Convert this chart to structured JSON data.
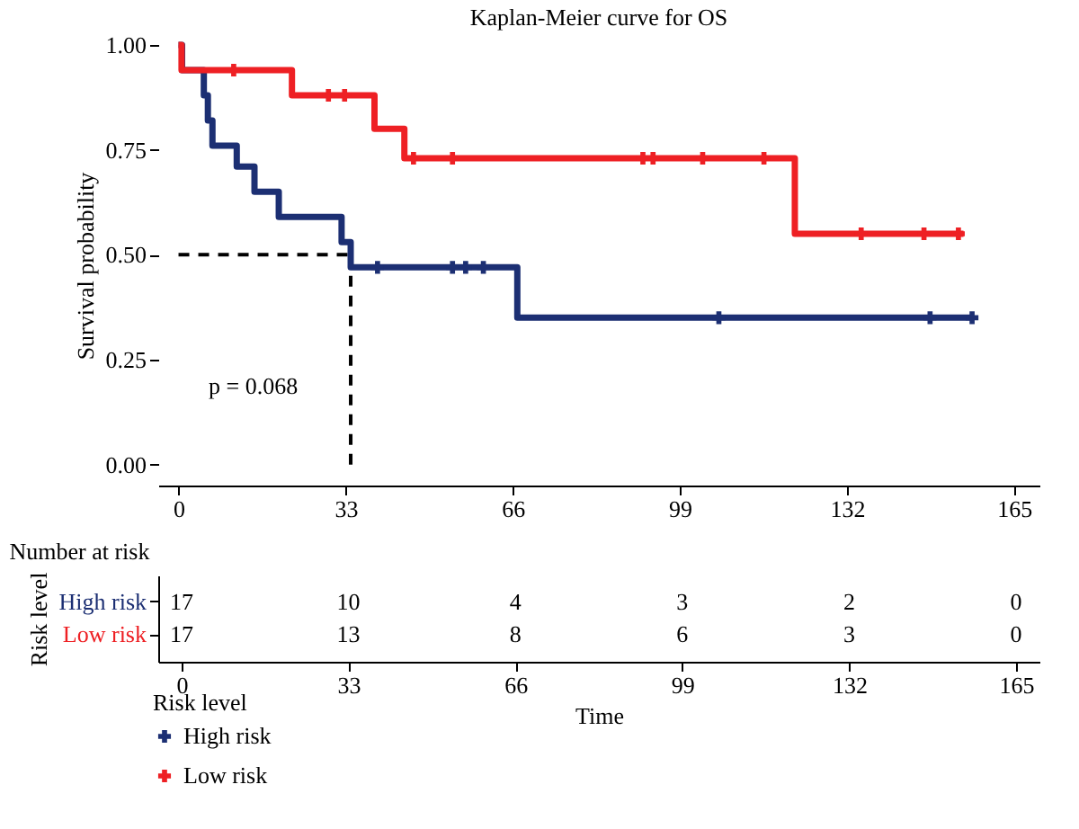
{
  "chart_data": [
    {
      "type": "step",
      "title": "Kaplan-Meier curve for OS",
      "ylabel": "Survival probability",
      "legend_title": "Risk level",
      "legend": "bottom",
      "grid": false,
      "xlim": [
        -4,
        170
      ],
      "xticks": [
        0,
        33,
        66,
        99,
        132,
        165
      ],
      "ylim": [
        -0.05,
        1
      ],
      "yticks": [
        {
          "value": 0,
          "label": "0.00"
        },
        {
          "value": 0.25,
          "label": "0.25"
        },
        {
          "value": 0.5,
          "label": "0.50"
        },
        {
          "value": 0.75,
          "label": "0.75"
        },
        {
          "value": 1,
          "label": "1.00"
        }
      ],
      "annotations": [
        "p = 0.068"
      ],
      "ref_lines": [
        {
          "axis": "y",
          "value": 0.5,
          "line_style": "dashed",
          "color": "#000000"
        },
        {
          "axis": "x",
          "value": 34,
          "line_style": "dashed",
          "color": "#000000"
        }
      ],
      "series": [
        {
          "type": "step",
          "color": "#1c2f73",
          "x": [
            0,
            0.7,
            5,
            5.8,
            6.7,
            11.5,
            15,
            19.8,
            32.2,
            34,
            66.9,
            156.7
          ],
          "values": [
            1,
            0.94,
            0.88,
            0.82,
            0.76,
            0.71,
            0.65,
            0.59,
            0.53,
            0.47,
            0.35,
            0.35
          ]
        },
        {
          "type": "step",
          "color": "#ee2024",
          "x": [
            0,
            0.6,
            22.4,
            38.7,
            44.6,
            121.7,
            155
          ],
          "values": [
            1,
            0.94,
            0.88,
            0.8,
            0.73,
            0.55,
            0.55
          ]
        },
        {
          "type": "scatter",
          "name": "High risk",
          "marker": "cross",
          "color": "#1c2f73",
          "x": [
            39.3,
            54.1,
            56.7,
            60.2,
            106.7,
            148.4,
            156.7
          ],
          "values": [
            0.47,
            0.47,
            0.47,
            0.47,
            0.35,
            0.35,
            0.35
          ]
        },
        {
          "type": "scatter",
          "name": "Low risk",
          "marker": "cross",
          "color": "#ee2024",
          "x": [
            10.9,
            29.6,
            32.8,
            46.4,
            54.1,
            91.7,
            93.7,
            103.5,
            115.6,
            134.8,
            147.2,
            154
          ],
          "values": [
            0.94,
            0.88,
            0.88,
            0.73,
            0.73,
            0.73,
            0.73,
            0.73,
            0.73,
            0.55,
            0.55,
            0.55
          ]
        }
      ]
    },
    {
      "type": "heatmap",
      "title": "Number at risk",
      "xlabel": "Time",
      "ylabel": "Risk level",
      "categories": [
        "0",
        "33",
        "66",
        "99",
        "132",
        "165"
      ],
      "y_categories": [
        "High risk",
        "Low risk"
      ],
      "data_labels": true,
      "cells": [
        [
          17,
          10,
          4,
          3,
          2,
          0
        ],
        [
          17,
          13,
          8,
          6,
          3,
          0
        ]
      ]
    }
  ]
}
